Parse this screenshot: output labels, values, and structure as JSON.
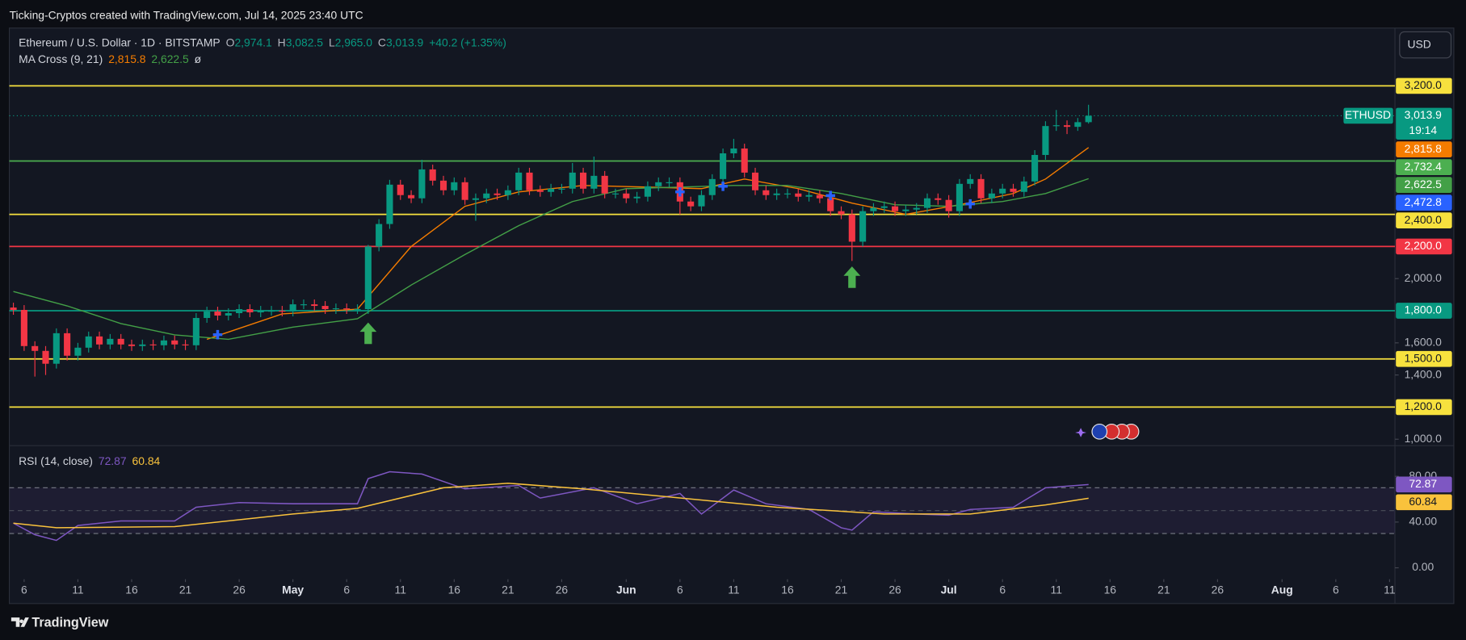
{
  "header": {
    "attribution": "Ticking-Cryptos created with TradingView.com, Jul 14, 2025 23:40 UTC",
    "symbol": "Ethereum / U.S. Dollar · 1D · BITSTAMP",
    "ohlc": [
      {
        "key": "O",
        "value": "2,974.1"
      },
      {
        "key": "H",
        "value": "3,082.5"
      },
      {
        "key": "L",
        "value": "2,965.0"
      },
      {
        "key": "C",
        "value": "3,013.9"
      }
    ],
    "change": "+40.2 (+1.35%)",
    "currency": "USD"
  },
  "footer": {
    "brand": "TradingView"
  },
  "chart_data": [
    {
      "type": "candlestick",
      "title": "Ethereum / U.S. Dollar · 1D · BITSTAMP",
      "up_color": "#089981",
      "down_color": "#f23645",
      "x": [
        "2025-04-05",
        "2025-04-06",
        "2025-04-07",
        "2025-04-08",
        "2025-04-09",
        "2025-04-10",
        "2025-04-11",
        "2025-04-12",
        "2025-04-13",
        "2025-04-14",
        "2025-04-15",
        "2025-04-16",
        "2025-04-17",
        "2025-04-18",
        "2025-04-19",
        "2025-04-20",
        "2025-04-21",
        "2025-04-22",
        "2025-04-23",
        "2025-04-24",
        "2025-04-25",
        "2025-04-26",
        "2025-04-27",
        "2025-04-28",
        "2025-04-29",
        "2025-04-30",
        "2025-05-01",
        "2025-05-02",
        "2025-05-03",
        "2025-05-04",
        "2025-05-05",
        "2025-05-06",
        "2025-05-07",
        "2025-05-08",
        "2025-05-09",
        "2025-05-10",
        "2025-05-11",
        "2025-05-12",
        "2025-05-13",
        "2025-05-14",
        "2025-05-15",
        "2025-05-16",
        "2025-05-17",
        "2025-05-18",
        "2025-05-19",
        "2025-05-20",
        "2025-05-21",
        "2025-05-22",
        "2025-05-23",
        "2025-05-24",
        "2025-05-25",
        "2025-05-26",
        "2025-05-27",
        "2025-05-28",
        "2025-05-29",
        "2025-05-30",
        "2025-05-31",
        "2025-06-01",
        "2025-06-02",
        "2025-06-03",
        "2025-06-04",
        "2025-06-05",
        "2025-06-06",
        "2025-06-07",
        "2025-06-08",
        "2025-06-09",
        "2025-06-10",
        "2025-06-11",
        "2025-06-12",
        "2025-06-13",
        "2025-06-14",
        "2025-06-15",
        "2025-06-16",
        "2025-06-17",
        "2025-06-18",
        "2025-06-19",
        "2025-06-20",
        "2025-06-21",
        "2025-06-22",
        "2025-06-23",
        "2025-06-24",
        "2025-06-25",
        "2025-06-26",
        "2025-06-27",
        "2025-06-28",
        "2025-06-29",
        "2025-06-30",
        "2025-07-01",
        "2025-07-02",
        "2025-07-03",
        "2025-07-04",
        "2025-07-05",
        "2025-07-06",
        "2025-07-07",
        "2025-07-08",
        "2025-07-09",
        "2025-07-10",
        "2025-07-11",
        "2025-07-12",
        "2025-07-13",
        "2025-07-14"
      ],
      "open": [
        1820,
        1805,
        1580,
        1550,
        1470,
        1660,
        1520,
        1570,
        1640,
        1590,
        1625,
        1590,
        1580,
        1590,
        1585,
        1615,
        1590,
        1585,
        1755,
        1795,
        1770,
        1785,
        1810,
        1790,
        1800,
        1800,
        1795,
        1840,
        1840,
        1830,
        1810,
        1815,
        1810,
        1810,
        2200,
        2340,
        2585,
        2520,
        2500,
        2680,
        2610,
        2550,
        2600,
        2490,
        2500,
        2530,
        2520,
        2550,
        2660,
        2550,
        2540,
        2560,
        2560,
        2660,
        2560,
        2640,
        2530,
        2530,
        2500,
        2510,
        2575,
        2600,
        2600,
        2480,
        2450,
        2520,
        2620,
        2780,
        2810,
        2660,
        2550,
        2520,
        2530,
        2530,
        2510,
        2520,
        2500,
        2420,
        2400,
        2230,
        2420,
        2440,
        2450,
        2420,
        2430,
        2440,
        2500,
        2490,
        2420,
        2590,
        2620,
        2500,
        2530,
        2560,
        2540,
        2605,
        2770,
        2950,
        2955,
        2945,
        2974.1
      ],
      "high": [
        1850,
        1835,
        1610,
        1580,
        1690,
        1690,
        1600,
        1670,
        1670,
        1655,
        1655,
        1620,
        1620,
        1620,
        1645,
        1645,
        1620,
        1785,
        1825,
        1825,
        1815,
        1840,
        1840,
        1830,
        1830,
        1830,
        1870,
        1870,
        1870,
        1860,
        1845,
        1845,
        1840,
        2210,
        2370,
        2615,
        2615,
        2550,
        2740,
        2710,
        2640,
        2630,
        2630,
        2530,
        2560,
        2560,
        2580,
        2690,
        2690,
        2580,
        2590,
        2590,
        2720,
        2690,
        2760,
        2670,
        2560,
        2560,
        2540,
        2605,
        2630,
        2630,
        2630,
        2510,
        2550,
        2650,
        2810,
        2870,
        2840,
        2690,
        2580,
        2560,
        2560,
        2560,
        2550,
        2550,
        2530,
        2450,
        2430,
        2450,
        2470,
        2480,
        2480,
        2460,
        2470,
        2530,
        2530,
        2520,
        2620,
        2650,
        2650,
        2560,
        2590,
        2590,
        2635,
        2800,
        2980,
        3050,
        2985,
        3000,
        3082.5
      ],
      "low": [
        1775,
        1550,
        1390,
        1400,
        1440,
        1490,
        1490,
        1540,
        1560,
        1560,
        1560,
        1550,
        1550,
        1555,
        1555,
        1560,
        1555,
        1555,
        1725,
        1740,
        1740,
        1755,
        1760,
        1760,
        1770,
        1765,
        1765,
        1810,
        1800,
        1780,
        1780,
        1780,
        1780,
        1780,
        2170,
        2310,
        2490,
        2470,
        2470,
        2580,
        2520,
        2520,
        2460,
        2360,
        2470,
        2490,
        2490,
        2520,
        2520,
        2510,
        2510,
        2530,
        2530,
        2530,
        2530,
        2500,
        2500,
        2470,
        2470,
        2480,
        2545,
        2570,
        2400,
        2420,
        2420,
        2490,
        2590,
        2750,
        2630,
        2520,
        2490,
        2490,
        2500,
        2480,
        2480,
        2470,
        2390,
        2370,
        2110,
        2200,
        2390,
        2410,
        2390,
        2390,
        2400,
        2410,
        2460,
        2380,
        2390,
        2560,
        2470,
        2470,
        2500,
        2510,
        2510,
        2580,
        2740,
        2920,
        2900,
        2920,
        2965.0
      ],
      "close": [
        1805,
        1580,
        1550,
        1470,
        1660,
        1520,
        1570,
        1640,
        1590,
        1625,
        1590,
        1580,
        1590,
        1585,
        1615,
        1590,
        1585,
        1755,
        1795,
        1770,
        1785,
        1810,
        1790,
        1800,
        1800,
        1795,
        1840,
        1840,
        1830,
        1810,
        1815,
        1810,
        1810,
        2200,
        2340,
        2585,
        2520,
        2500,
        2680,
        2610,
        2550,
        2600,
        2490,
        2500,
        2530,
        2520,
        2550,
        2660,
        2550,
        2540,
        2560,
        2560,
        2660,
        2560,
        2640,
        2530,
        2530,
        2500,
        2510,
        2575,
        2600,
        2600,
        2480,
        2450,
        2520,
        2620,
        2780,
        2810,
        2660,
        2550,
        2520,
        2530,
        2530,
        2510,
        2520,
        2500,
        2420,
        2400,
        2230,
        2420,
        2440,
        2450,
        2420,
        2430,
        2440,
        2500,
        2490,
        2420,
        2590,
        2620,
        2500,
        2530,
        2560,
        2540,
        2605,
        2770,
        2950,
        2955,
        2945,
        2974.1,
        3013.9
      ],
      "xlim": [
        "2025-04-04T15:00:00Z",
        "2025-08-11T12:00:00Z"
      ],
      "xticks": [
        {
          "value": "2025-04-06",
          "label": "6"
        },
        {
          "value": "2025-04-11",
          "label": "11"
        },
        {
          "value": "2025-04-16",
          "label": "16"
        },
        {
          "value": "2025-04-21",
          "label": "21"
        },
        {
          "value": "2025-04-26",
          "label": "26"
        },
        {
          "value": "2025-05-01",
          "label": "May"
        },
        {
          "value": "2025-05-06",
          "label": "6"
        },
        {
          "value": "2025-05-11",
          "label": "11"
        },
        {
          "value": "2025-05-16",
          "label": "16"
        },
        {
          "value": "2025-05-21",
          "label": "21"
        },
        {
          "value": "2025-05-26",
          "label": "26"
        },
        {
          "value": "2025-06-01",
          "label": "Jun"
        },
        {
          "value": "2025-06-06",
          "label": "6"
        },
        {
          "value": "2025-06-11",
          "label": "11"
        },
        {
          "value": "2025-06-16",
          "label": "16"
        },
        {
          "value": "2025-06-21",
          "label": "21"
        },
        {
          "value": "2025-06-26",
          "label": "26"
        },
        {
          "value": "2025-07-01",
          "label": "Jul"
        },
        {
          "value": "2025-07-06",
          "label": "6"
        },
        {
          "value": "2025-07-11",
          "label": "11"
        },
        {
          "value": "2025-07-16",
          "label": "16"
        },
        {
          "value": "2025-07-21",
          "label": "21"
        },
        {
          "value": "2025-07-26",
          "label": "26"
        },
        {
          "value": "2025-08-01",
          "label": "Aug"
        },
        {
          "value": "2025-08-06",
          "label": "6"
        },
        {
          "value": "2025-08-11",
          "label": "11"
        }
      ],
      "ylim": [
        960,
        3560
      ],
      "yticks": [
        {
          "value": 2000,
          "label": "2,000.0"
        },
        {
          "value": 1600,
          "label": "1,600.0"
        },
        {
          "value": 1400,
          "label": "1,400.0"
        },
        {
          "value": 1000,
          "label": "1,000.0"
        }
      ],
      "levels": [
        {
          "value": 3200,
          "label": "3,200.0",
          "color": "#f7e13e"
        },
        {
          "value": 2732.4,
          "label": "2,732.4",
          "color": "#4caf50"
        },
        {
          "value": 2400,
          "label": "2,400.0",
          "color": "#f7e13e"
        },
        {
          "value": 2200,
          "label": "2,200.0",
          "color": "#f23645"
        },
        {
          "value": 1800,
          "label": "1,800.0",
          "color": "#089981"
        },
        {
          "value": 1500,
          "label": "1,500.0",
          "color": "#f7e13e"
        },
        {
          "value": 1200,
          "label": "1,200.0",
          "color": "#f7e13e"
        }
      ],
      "last": {
        "value": 3013.9,
        "label": "3,013.9",
        "countdown": "19:14",
        "symbol": "ETHUSD",
        "color": "#089981"
      },
      "cross_label": {
        "value": 2472.8,
        "label": "2,472.8",
        "color": "#2962ff"
      },
      "indicator": {
        "name": "MA Cross (9, 21)",
        "values": [
          "2,815.8",
          "2,622.5"
        ],
        "symbol": "ø"
      },
      "overlays": [
        {
          "color": "#f57c00",
          "x": [
            "2025-04-23",
            "2025-04-30",
            "2025-05-07",
            "2025-05-12",
            "2025-05-17",
            "2025-05-22",
            "2025-05-28",
            "2025-06-03",
            "2025-06-08",
            "2025-06-12",
            "2025-06-17",
            "2025-06-22",
            "2025-06-27",
            "2025-07-02",
            "2025-07-07",
            "2025-07-10",
            "2025-07-14"
          ],
          "values": [
            1622,
            1780,
            1810,
            2200,
            2450,
            2540,
            2580,
            2570,
            2560,
            2620,
            2560,
            2470,
            2400,
            2460,
            2530,
            2620,
            2815.8
          ]
        },
        {
          "color": "#43a047",
          "x": [
            "2025-04-05",
            "2025-04-10",
            "2025-04-15",
            "2025-04-20",
            "2025-04-25",
            "2025-05-01",
            "2025-05-07",
            "2025-05-12",
            "2025-05-17",
            "2025-05-22",
            "2025-05-27",
            "2025-06-01",
            "2025-06-06",
            "2025-06-11",
            "2025-06-16",
            "2025-06-21",
            "2025-06-26",
            "2025-07-01",
            "2025-07-06",
            "2025-07-10",
            "2025-07-14"
          ],
          "values": [
            1920,
            1830,
            1720,
            1650,
            1622,
            1698,
            1750,
            1960,
            2150,
            2330,
            2480,
            2560,
            2570,
            2580,
            2580,
            2530,
            2460,
            2450,
            2480,
            2530,
            2622.5
          ]
        }
      ],
      "crosses": {
        "color": "#2962ff",
        "x": [
          "2025-04-24",
          "2025-06-06",
          "2025-06-10",
          "2025-06-20",
          "2025-07-03"
        ],
        "values": [
          1651,
          2540,
          2575,
          2517,
          2465
        ]
      },
      "arrows": {
        "color": "#4caf50",
        "x": [
          "2025-05-08",
          "2025-06-22"
        ],
        "values": [
          1657,
          2006
        ]
      }
    },
    {
      "type": "line",
      "title": "RSI (14, close)",
      "ylim": [
        -10,
        106
      ],
      "yticks": [
        {
          "value": 80,
          "label": "80.00"
        },
        {
          "value": 40,
          "label": "40.00"
        },
        {
          "value": 0,
          "label": "0.00"
        }
      ],
      "bands": [
        70,
        50,
        30
      ],
      "lines": [
        {
          "color": "#7e57c2",
          "label": "72.87",
          "x": [
            "2025-04-05",
            "2025-04-07",
            "2025-04-09",
            "2025-04-11",
            "2025-04-15",
            "2025-04-20",
            "2025-04-22",
            "2025-04-26",
            "2025-05-01",
            "2025-05-07",
            "2025-05-08",
            "2025-05-10",
            "2025-05-13",
            "2025-05-17",
            "2025-05-22",
            "2025-05-24",
            "2025-05-29",
            "2025-06-02",
            "2025-06-06",
            "2025-06-08",
            "2025-06-11",
            "2025-06-14",
            "2025-06-18",
            "2025-06-21",
            "2025-06-22",
            "2025-06-24",
            "2025-06-28",
            "2025-07-01",
            "2025-07-03",
            "2025-07-07",
            "2025-07-10",
            "2025-07-14"
          ],
          "values": [
            39,
            29,
            24,
            37,
            41,
            41,
            53,
            57,
            56,
            56,
            78,
            84,
            82,
            69,
            72,
            61,
            70,
            56,
            65,
            47,
            68,
            56,
            51,
            35,
            33,
            49,
            47,
            46,
            51,
            53,
            70,
            72.87
          ]
        },
        {
          "color": "#f9c23c",
          "label": "60.84",
          "x": [
            "2025-04-05",
            "2025-04-09",
            "2025-04-20",
            "2025-05-01",
            "2025-05-07",
            "2025-05-15",
            "2025-05-21",
            "2025-05-28",
            "2025-06-05",
            "2025-06-15",
            "2025-06-25",
            "2025-07-03",
            "2025-07-10",
            "2025-07-14"
          ],
          "values": [
            39,
            35,
            36,
            47,
            52,
            70,
            74,
            69,
            62,
            53,
            47,
            47,
            55,
            60.84
          ]
        }
      ]
    }
  ]
}
